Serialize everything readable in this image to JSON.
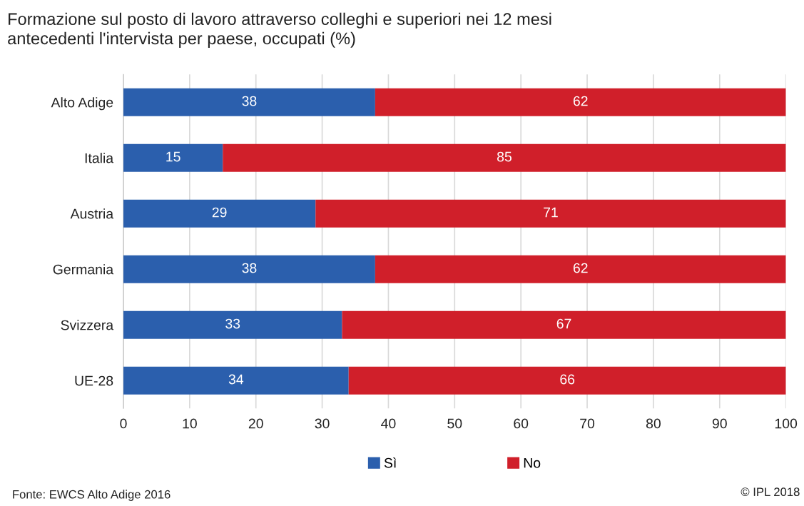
{
  "chart_data": {
    "type": "bar",
    "orientation": "horizontal",
    "stacked": true,
    "title": "Formazione sul posto di lavoro attraverso colleghi e superiori nei 12 mesi\nantecedenti l'intervista per paese, occupati (%)",
    "categories": [
      "Alto Adige",
      "Italia",
      "Austria",
      "Germania",
      "Svizzera",
      "UE-28"
    ],
    "series": [
      {
        "name": "Sì",
        "color": "#2b5fad",
        "values": [
          38,
          15,
          29,
          38,
          33,
          34
        ]
      },
      {
        "name": "No",
        "color": "#d01f2a",
        "values": [
          62,
          85,
          71,
          62,
          67,
          66
        ]
      }
    ],
    "xlim": [
      0,
      100
    ],
    "xticks": [
      0,
      10,
      20,
      30,
      40,
      50,
      60,
      70,
      80,
      90,
      100
    ],
    "grid": "x",
    "legend": "bottom",
    "data_labels": true,
    "annotations": [
      "Fonte: EWCS Alto Adige 2016",
      "© IPL 2018"
    ]
  }
}
